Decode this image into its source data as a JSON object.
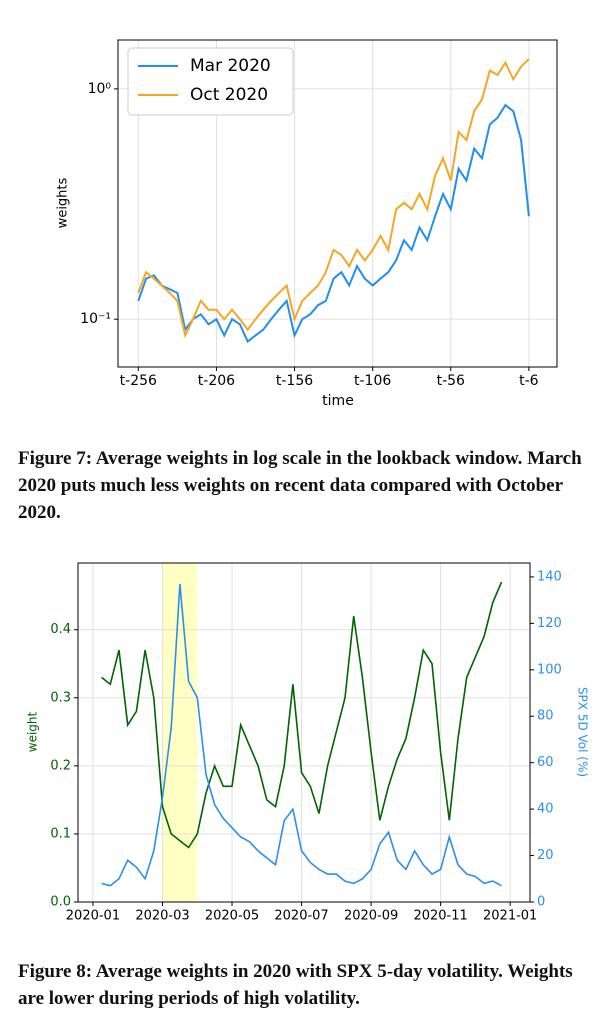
{
  "chart_data": [
    {
      "type": "line",
      "xlabel": "time",
      "ylabel": "weights",
      "ylog": true,
      "grid": true,
      "legend": "upper left",
      "x": [
        -256,
        -251,
        -246,
        -241,
        -236,
        -231,
        -226,
        -221,
        -216,
        -211,
        -206,
        -201,
        -196,
        -191,
        -186,
        -181,
        -176,
        -171,
        -166,
        -161,
        -156,
        -151,
        -146,
        -141,
        -136,
        -131,
        -126,
        -121,
        -116,
        -111,
        -106,
        -101,
        -96,
        -91,
        -86,
        -81,
        -76,
        -71,
        -66,
        -61,
        -56,
        -51,
        -46,
        -41,
        -36,
        -31,
        -26,
        -21,
        -16,
        -11,
        -6
      ],
      "series": [
        {
          "name": "Mar 2020",
          "color": "#1f8ff0",
          "values": [
            0.12,
            0.15,
            0.155,
            0.14,
            0.135,
            0.13,
            0.09,
            0.1,
            0.105,
            0.095,
            0.1,
            0.085,
            0.1,
            0.095,
            0.08,
            0.085,
            0.09,
            0.1,
            0.11,
            0.12,
            0.085,
            0.1,
            0.105,
            0.115,
            0.12,
            0.15,
            0.16,
            0.14,
            0.17,
            0.15,
            0.14,
            0.15,
            0.16,
            0.18,
            0.22,
            0.2,
            0.25,
            0.22,
            0.28,
            0.35,
            0.3,
            0.45,
            0.4,
            0.55,
            0.5,
            0.7,
            0.75,
            0.85,
            0.8,
            0.6,
            0.28
          ]
        },
        {
          "name": "Oct 2020",
          "color": "#f5a623",
          "values": [
            0.13,
            0.16,
            0.15,
            0.14,
            0.13,
            0.12,
            0.085,
            0.1,
            0.12,
            0.11,
            0.11,
            0.1,
            0.11,
            0.1,
            0.09,
            0.1,
            0.11,
            0.12,
            0.13,
            0.14,
            0.1,
            0.12,
            0.13,
            0.14,
            0.16,
            0.2,
            0.19,
            0.17,
            0.2,
            0.18,
            0.2,
            0.23,
            0.2,
            0.3,
            0.32,
            0.3,
            0.35,
            0.3,
            0.42,
            0.5,
            0.4,
            0.65,
            0.6,
            0.8,
            0.9,
            1.2,
            1.15,
            1.3,
            1.1,
            1.25,
            1.35
          ]
        }
      ],
      "xlim": [
        -269,
        12
      ],
      "xticks": [
        {
          "value": -256,
          "label": "t-256"
        },
        {
          "value": -206,
          "label": "t-206"
        },
        {
          "value": -156,
          "label": "t-156"
        },
        {
          "value": -106,
          "label": "t-106"
        },
        {
          "value": -56,
          "label": "t-56"
        },
        {
          "value": -6,
          "label": "t-6"
        }
      ],
      "ylim": [
        0.062,
        1.63
      ],
      "yticks": [
        {
          "value": 0.1,
          "label": "10⁻¹"
        },
        {
          "value": 1,
          "label": "10⁰"
        }
      ]
    },
    {
      "type": "line",
      "ylabel": "weight",
      "y2label": "SPX 5D Vol (%)",
      "grid": true,
      "highlight": {
        "x": [
          2.0,
          3.0
        ],
        "color": "#ffffc4"
      },
      "x": [
        0.25,
        0.5,
        0.75,
        1.0,
        1.25,
        1.5,
        1.75,
        2.0,
        2.25,
        2.5,
        2.75,
        3.0,
        3.25,
        3.5,
        3.75,
        4.0,
        4.25,
        4.5,
        4.75,
        5.0,
        5.25,
        5.5,
        5.75,
        6.0,
        6.25,
        6.5,
        6.75,
        7.0,
        7.25,
        7.5,
        7.75,
        8.0,
        8.25,
        8.5,
        8.75,
        9.0,
        9.25,
        9.5,
        9.75,
        10.0,
        10.25,
        10.5,
        10.75,
        11.0,
        11.25,
        11.5,
        11.75
      ],
      "series": [
        {
          "name": "weight",
          "color": "#006400",
          "values": [
            0.33,
            0.32,
            0.37,
            0.26,
            0.28,
            0.37,
            0.3,
            0.14,
            0.1,
            0.09,
            0.08,
            0.1,
            0.16,
            0.2,
            0.17,
            0.17,
            0.26,
            0.23,
            0.2,
            0.15,
            0.14,
            0.2,
            0.32,
            0.19,
            0.17,
            0.13,
            0.2,
            0.25,
            0.3,
            0.42,
            0.33,
            0.22,
            0.12,
            0.17,
            0.21,
            0.24,
            0.3,
            0.37,
            0.35,
            0.22,
            0.12,
            0.24,
            0.33,
            0.36,
            0.39,
            0.44,
            0.47
          ]
        },
        {
          "name": "SPX 5D Vol (%)",
          "color": "#2b8ff0",
          "axis": "y2",
          "values": [
            8,
            7,
            10,
            18,
            15,
            10,
            22,
            45,
            75,
            137,
            95,
            88,
            55,
            42,
            36,
            32,
            28,
            26,
            22,
            19,
            16,
            35,
            40,
            22,
            17,
            14,
            12,
            12,
            9,
            8,
            10,
            14,
            25,
            30,
            18,
            14,
            22,
            16,
            12,
            14,
            28,
            16,
            12,
            11,
            8,
            9,
            7
          ]
        }
      ],
      "xlim": [
        -0.43,
        12.57
      ],
      "xticks": [
        {
          "value": 0,
          "label": "2020-01"
        },
        {
          "value": 2,
          "label": "2020-03"
        },
        {
          "value": 4,
          "label": "2020-05"
        },
        {
          "value": 6,
          "label": "2020-07"
        },
        {
          "value": 8,
          "label": "2020-09"
        },
        {
          "value": 10,
          "label": "2020-11"
        },
        {
          "value": 12,
          "label": "2021-01"
        }
      ],
      "ylim": [
        0,
        0.498
      ],
      "yticks": [
        {
          "value": 0,
          "label": "0.0"
        },
        0.1,
        0.2,
        0.3,
        0.4
      ],
      "y2lim": [
        0,
        146
      ],
      "y2ticks": [
        0,
        20,
        40,
        60,
        80,
        100,
        120,
        140
      ]
    }
  ],
  "captions": [
    "Figure 7: Average weights in log scale in the lookback window. March 2020 puts much less weights on recent data compared with October 2020.",
    "Figure 8: Average weights in 2020 with SPX 5-day volatility. Weights are lower during periods of high volatility."
  ]
}
